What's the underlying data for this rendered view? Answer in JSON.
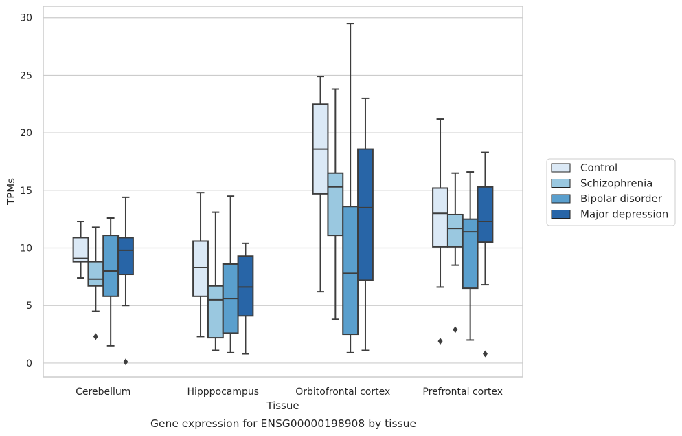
{
  "caption": "Gene expression for ENSG00000198908 by tissue",
  "chart_data": {
    "type": "box",
    "xlabel": "Tissue",
    "ylabel": "TPMs",
    "ylim": [
      -1.2,
      31
    ],
    "yticks": [
      0,
      5,
      10,
      15,
      20,
      25,
      30
    ],
    "grid": "horizontal",
    "legend_position": "right",
    "categories": [
      "Cerebellum",
      "Hipppocampus",
      "Orbitofrontal cortex",
      "Prefrontal cortex"
    ],
    "series": [
      {
        "name": "Control",
        "color": "#dbe9f6",
        "boxes": [
          {
            "whisker_low": 7.4,
            "q1": 8.8,
            "median": 9.1,
            "q3": 10.9,
            "whisker_high": 12.3,
            "outliers": []
          },
          {
            "whisker_low": 2.3,
            "q1": 5.8,
            "median": 8.3,
            "q3": 10.6,
            "whisker_high": 14.8,
            "outliers": []
          },
          {
            "whisker_low": 6.2,
            "q1": 14.7,
            "median": 18.6,
            "q3": 22.5,
            "whisker_high": 24.9,
            "outliers": []
          },
          {
            "whisker_low": 6.6,
            "q1": 10.1,
            "median": 13.0,
            "q3": 15.2,
            "whisker_high": 21.2,
            "outliers": [
              1.9
            ]
          }
        ]
      },
      {
        "name": "Schizophrenia",
        "color": "#9ac8e0",
        "boxes": [
          {
            "whisker_low": 4.5,
            "q1": 6.7,
            "median": 7.3,
            "q3": 8.8,
            "whisker_high": 11.8,
            "outliers": [
              2.3
            ]
          },
          {
            "whisker_low": 1.1,
            "q1": 2.2,
            "median": 5.5,
            "q3": 6.7,
            "whisker_high": 13.1,
            "outliers": []
          },
          {
            "whisker_low": 3.8,
            "q1": 11.1,
            "median": 15.3,
            "q3": 16.5,
            "whisker_high": 23.8,
            "outliers": []
          },
          {
            "whisker_low": 8.5,
            "q1": 10.1,
            "median": 11.7,
            "q3": 12.9,
            "whisker_high": 16.5,
            "outliers": [
              2.9
            ]
          }
        ]
      },
      {
        "name": "Bipolar disorder",
        "color": "#5a9fcd",
        "boxes": [
          {
            "whisker_low": 1.5,
            "q1": 5.8,
            "median": 8.0,
            "q3": 11.1,
            "whisker_high": 12.6,
            "outliers": []
          },
          {
            "whisker_low": 0.9,
            "q1": 2.6,
            "median": 5.6,
            "q3": 8.6,
            "whisker_high": 14.5,
            "outliers": []
          },
          {
            "whisker_low": 0.9,
            "q1": 2.5,
            "median": 7.8,
            "q3": 13.6,
            "whisker_high": 29.5,
            "outliers": []
          },
          {
            "whisker_low": 2.0,
            "q1": 6.5,
            "median": 11.4,
            "q3": 12.5,
            "whisker_high": 16.6,
            "outliers": []
          }
        ]
      },
      {
        "name": "Major depression",
        "color": "#2865a7",
        "boxes": [
          {
            "whisker_low": 5.0,
            "q1": 7.7,
            "median": 9.8,
            "q3": 10.9,
            "whisker_high": 14.4,
            "outliers": [
              0.1
            ]
          },
          {
            "whisker_low": 0.8,
            "q1": 4.1,
            "median": 6.6,
            "q3": 9.3,
            "whisker_high": 10.4,
            "outliers": []
          },
          {
            "whisker_low": 1.1,
            "q1": 7.2,
            "median": 13.5,
            "q3": 18.6,
            "whisker_high": 23.0,
            "outliers": []
          },
          {
            "whisker_low": 6.8,
            "q1": 10.5,
            "median": 12.3,
            "q3": 15.3,
            "whisker_high": 18.3,
            "outliers": [
              0.8
            ]
          }
        ]
      }
    ]
  }
}
